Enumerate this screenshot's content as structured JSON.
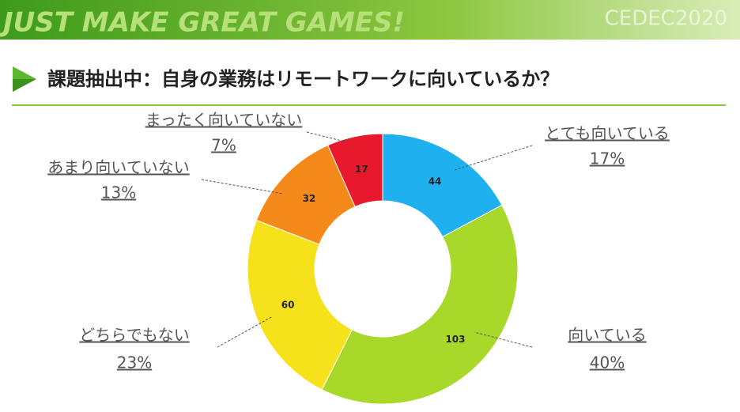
{
  "header": {
    "banner": "JUST MAKE GREAT GAMES!",
    "logo": "CEDEC2020"
  },
  "chart_data": {
    "type": "donut",
    "title": "課題抽出中：自身の業務はリモートワークに向いているか？",
    "categories": [
      "とても向いている",
      "向いている",
      "どちらでもない",
      "あまり向いていない",
      "まったく向いていない"
    ],
    "values": [
      44,
      103,
      60,
      32,
      17
    ],
    "percent_labels": [
      "17%",
      "40%",
      "23%",
      "13%",
      "7%"
    ],
    "colors": [
      "#1fb0f0",
      "#a8d82a",
      "#f5e21a",
      "#f58a1a",
      "#e8192c"
    ]
  }
}
